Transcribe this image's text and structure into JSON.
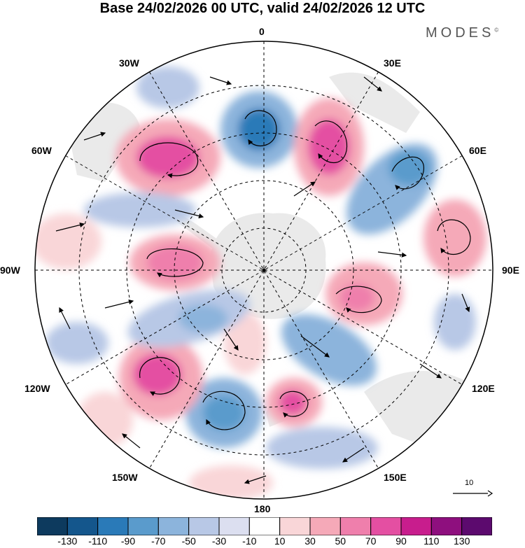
{
  "title": "Base 24/02/2026 00 UTC, valid 24/02/2026 12 UTC",
  "brand": "MODES",
  "brand_mark": "©",
  "longitude_labels": {
    "n": "0",
    "ne": "30E",
    "e60": "60E",
    "e90": "90E",
    "e120": "120E",
    "e150": "150E",
    "s": "180",
    "w150": "150W",
    "w120": "120W",
    "w90": "90W",
    "w60": "60W",
    "w30": "30W"
  },
  "vector_scale": {
    "label": "10"
  },
  "colorbar": {
    "colors": [
      "#0d3a5e",
      "#14568c",
      "#2a7ab8",
      "#5a9bcc",
      "#8cb4dc",
      "#b8c8e6",
      "#dcdff0",
      "#ffffff",
      "#f9d6d8",
      "#f5a9b8",
      "#ef7fac",
      "#e44fa2",
      "#c81d8d",
      "#8e0f7e",
      "#5c0a6e"
    ],
    "ticks": [
      "-130",
      "-110",
      "-90",
      "-70",
      "-50",
      "-30",
      "-10",
      "10",
      "30",
      "50",
      "70",
      "90",
      "110",
      "130"
    ]
  },
  "colors": {
    "land": "#e6e6e6",
    "positive": "#f5a9b8",
    "negative": "#8cb4dc"
  }
}
